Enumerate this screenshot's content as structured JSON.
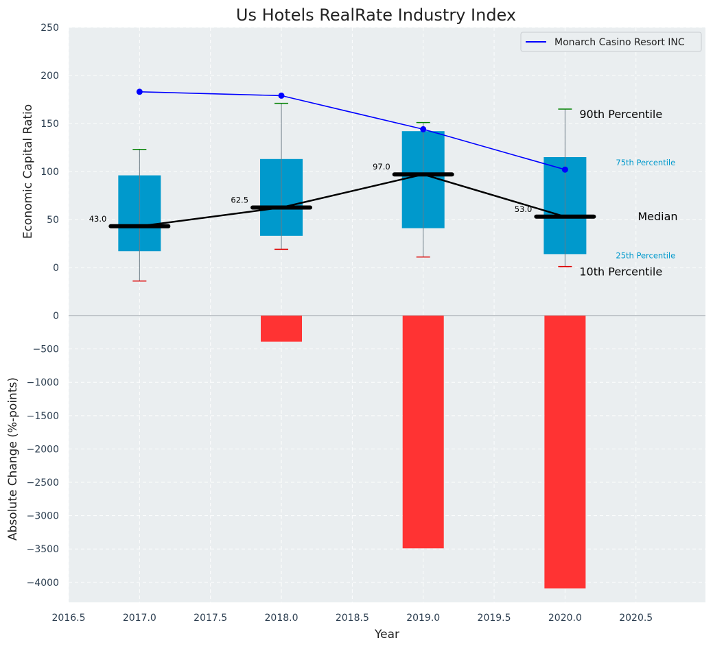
{
  "chart_data": {
    "type": "box",
    "title": "Us Hotels RealRate Industry Index",
    "xlabel": "Year",
    "top_panel": {
      "ylabel": "Economic Capital Ratio",
      "ylim": [
        -50,
        250
      ],
      "yticks": [
        0,
        50,
        100,
        150,
        200,
        250
      ],
      "categories": [
        "2017.0",
        "2018.0",
        "2019.0",
        "2020.0"
      ],
      "x": [
        2017,
        2018,
        2019,
        2020
      ],
      "p10": [
        -14,
        19,
        11,
        1
      ],
      "p25": [
        17,
        33,
        41,
        14
      ],
      "median": [
        43.0,
        62.5,
        97.0,
        53.0
      ],
      "median_labels": [
        "43.0",
        "62.5",
        "97.0",
        "53.0"
      ],
      "p75": [
        96,
        113,
        142,
        115
      ],
      "p90": [
        123,
        171,
        151,
        165
      ],
      "company_series": {
        "name": "Monarch Casino Resort INC",
        "values": [
          183,
          179,
          144,
          102
        ],
        "color": "#0000ff"
      },
      "annotations": {
        "p90": "90th Percentile",
        "p75": "75th Percentile",
        "median": "Median",
        "p25": "25th Percentile",
        "p10": "10th Percentile"
      },
      "colors": {
        "box": "#0099cc",
        "median_line": "#000000",
        "p90_cap": "#008000",
        "p10_cap": "#dd0000"
      }
    },
    "bottom_panel": {
      "type": "bar",
      "ylabel": "Absolute Change (%-points)",
      "ylim": [
        -4300,
        0
      ],
      "yticks": [
        0,
        -500,
        -1000,
        -1500,
        -2000,
        -2500,
        -3000,
        -3500,
        -4000
      ],
      "x": [
        2017,
        2018,
        2019,
        2020
      ],
      "values": [
        0,
        -390,
        -3490,
        -4090
      ],
      "color": "#ff3333"
    },
    "x_range": [
      2016.5,
      2020.99
    ],
    "xticks": [
      2016.5,
      2017.0,
      2017.5,
      2018.0,
      2018.5,
      2019.0,
      2019.5,
      2020.0,
      2020.5
    ],
    "grid": true,
    "legend_position": "top-right",
    "background": "#eaeef0"
  }
}
